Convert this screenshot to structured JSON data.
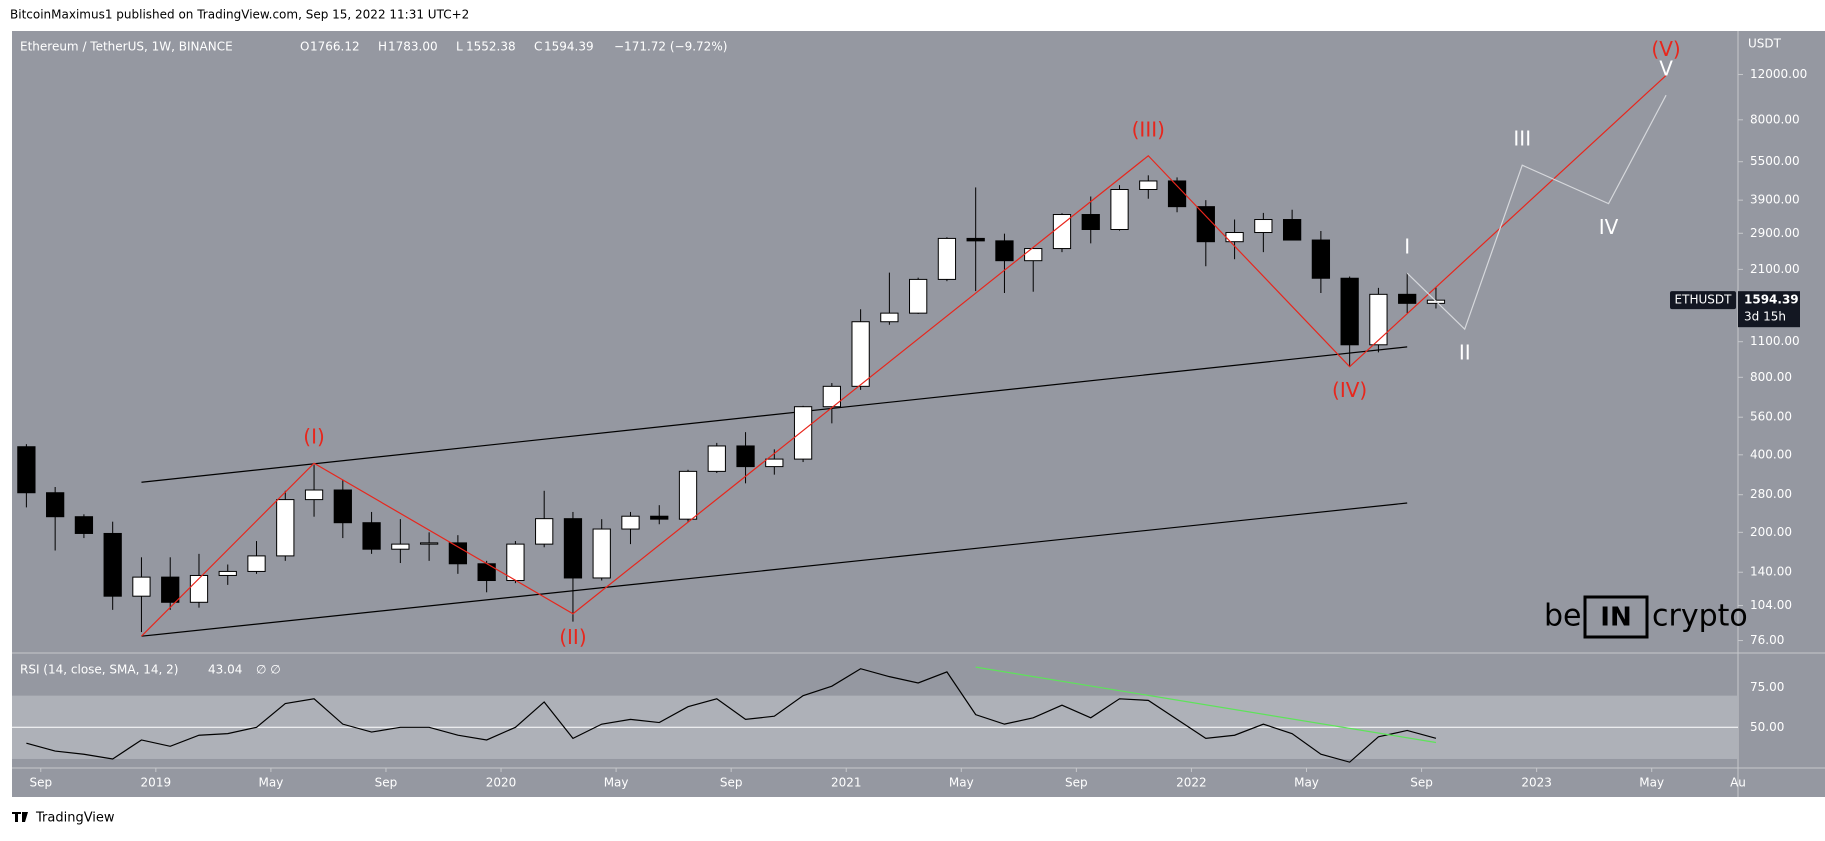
{
  "header": {
    "publisher": "BitcoinMaximus1 published on TradingView.com, Sep 15, 2022 11:31 UTC+2",
    "ohlc": [
      {
        "label": "O",
        "value": "1766.12"
      },
      {
        "label": "H",
        "value": "1783.00"
      },
      {
        "label": "L",
        "value": "1552.38"
      }
    ],
    "close_label": "C",
    "change": "−171.72 (−9.72%)"
  },
  "footer": "TradingView",
  "watermark": {
    "left": "be",
    "box": "IN",
    "right": "crypto"
  },
  "chart_data": {
    "type": "candlestick",
    "title": "Ethereum / TetherUS, 1W, BINANCE",
    "log_scale": true,
    "axis_unit": "USDT",
    "symbol": "ETHUSDT",
    "countdown": "3d 15h",
    "up_color": "#ffffff",
    "down_color": "#000000",
    "x": [
      "2018-08",
      "2018-09",
      "2018-10",
      "2018-11",
      "2018-12",
      "2019-01",
      "2019-02",
      "2019-03",
      "2019-04",
      "2019-05",
      "2019-06",
      "2019-07",
      "2019-08",
      "2019-09",
      "2019-10",
      "2019-11",
      "2019-12",
      "2020-01",
      "2020-02",
      "2020-03",
      "2020-04",
      "2020-05",
      "2020-06",
      "2020-07",
      "2020-08",
      "2020-09",
      "2020-10",
      "2020-11",
      "2020-12",
      "2021-01",
      "2021-02",
      "2021-03",
      "2021-04",
      "2021-05",
      "2021-06",
      "2021-07",
      "2021-08",
      "2021-09",
      "2021-10",
      "2021-11",
      "2021-12",
      "2022-01",
      "2022-02",
      "2022-03",
      "2022-04",
      "2022-05",
      "2022-06",
      "2022-07",
      "2022-08",
      "2022-09"
    ],
    "open": [
      430,
      285,
      230,
      198,
      113,
      134,
      107,
      136,
      141,
      162,
      268,
      292,
      218,
      172,
      180,
      182,
      151,
      130,
      180,
      226,
      133,
      206,
      231,
      225,
      345,
      433,
      360,
      385,
      615,
      738,
      1315,
      1420,
      1920,
      2770,
      2710,
      2270,
      2530,
      3430,
      3000,
      4290,
      4630,
      3680,
      2690,
      2920,
      3280,
      2730,
      1940,
      1070,
      1680,
      1550
    ],
    "high": [
      440,
      300,
      235,
      220,
      160,
      160,
      165,
      150,
      185,
      290,
      365,
      320,
      240,
      225,
      200,
      195,
      155,
      185,
      290,
      240,
      225,
      240,
      255,
      350,
      445,
      490,
      420,
      620,
      760,
      1470,
      2040,
      1950,
      2800,
      4370,
      2890,
      2550,
      3470,
      4030,
      4460,
      4870,
      4780,
      3900,
      3280,
      3480,
      3580,
      2960,
      1970,
      1780,
      2030,
      1790
    ],
    "low": [
      250,
      170,
      190,
      100,
      82,
      100,
      102,
      125,
      138,
      155,
      230,
      190,
      165,
      152,
      155,
      138,
      117,
      127,
      175,
      90,
      130,
      180,
      215,
      220,
      340,
      310,
      335,
      375,
      530,
      715,
      1280,
      1410,
      1890,
      1730,
      1700,
      1720,
      2450,
      2650,
      2970,
      3950,
      3500,
      2160,
      2300,
      2450,
      2780,
      1700,
      880,
      1000,
      1420,
      1480
    ],
    "close": [
      285,
      230,
      198,
      113,
      134,
      107,
      136,
      141,
      162,
      268,
      292,
      218,
      172,
      180,
      182,
      151,
      130,
      180,
      226,
      133,
      206,
      231,
      225,
      345,
      433,
      360,
      385,
      615,
      738,
      1315,
      1420,
      1920,
      2770,
      2710,
      2270,
      2530,
      3430,
      3000,
      4290,
      4630,
      3680,
      2690,
      2920,
      3280,
      2730,
      1940,
      1070,
      1680,
      1550,
      1594.39
    ],
    "xlim": [
      "2018-08",
      "2023-08"
    ],
    "xticks": [
      {
        "value": "2018-09",
        "label": "Sep"
      },
      {
        "value": "2019-01",
        "label": "2019"
      },
      {
        "value": "2019-05",
        "label": "May"
      },
      {
        "value": "2019-09",
        "label": "Sep"
      },
      {
        "value": "2020-01",
        "label": "2020"
      },
      {
        "value": "2020-05",
        "label": "May"
      },
      {
        "value": "2020-09",
        "label": "Sep"
      },
      {
        "value": "2021-01",
        "label": "2021"
      },
      {
        "value": "2021-05",
        "label": "May"
      },
      {
        "value": "2021-09",
        "label": "Sep"
      },
      {
        "value": "2022-01",
        "label": "2022"
      },
      {
        "value": "2022-05",
        "label": "May"
      },
      {
        "value": "2022-09",
        "label": "Sep"
      },
      {
        "value": "2023-01",
        "label": "2023"
      },
      {
        "value": "2023-05",
        "label": "May"
      },
      {
        "value": "2023-08",
        "label": "Au"
      }
    ],
    "ylim": [
      68.6,
      17700
    ],
    "yticks": [
      {
        "value": 76,
        "label": "76.00"
      },
      {
        "value": 104,
        "label": "104.00"
      },
      {
        "value": 140,
        "label": "140.00"
      },
      {
        "value": 200,
        "label": "200.00"
      },
      {
        "value": 280,
        "label": "280.00"
      },
      {
        "value": 400,
        "label": "400.00"
      },
      {
        "value": 560,
        "label": "560.00"
      },
      {
        "value": 800,
        "label": "800.00"
      },
      {
        "value": 1100,
        "label": "1100.00"
      },
      {
        "value": 2100,
        "label": "2100.00"
      },
      {
        "value": 2900,
        "label": "2900.00"
      },
      {
        "value": 3900,
        "label": "3900.00"
      },
      {
        "value": 5500,
        "label": "5500.00"
      },
      {
        "value": 8000,
        "label": "8000.00"
      },
      {
        "value": 12000,
        "label": "12000.00"
      }
    ],
    "channels": [
      {
        "color": "#000000",
        "x": [
          "2018-12",
          "2022-08"
        ],
        "y": [
          313,
          1050
        ]
      },
      {
        "color": "#000000",
        "x": [
          "2018-12",
          "2022-08"
        ],
        "y": [
          79,
          260
        ]
      }
    ],
    "waves": [
      {
        "color": "#e8261c",
        "line_color": "#e8261c",
        "x": [
          "2018-12",
          "2019-06",
          "2020-03",
          "2021-11",
          "2022-06",
          "2023-05"
        ],
        "y": [
          79,
          371,
          96.6,
          5800,
          880,
          11900
        ],
        "labels": [
          null,
          "(I)",
          "(II)",
          "(III)",
          "(IV)",
          "(V)"
        ],
        "label_pos": [
          null,
          "above",
          "below",
          "above",
          "below",
          "above"
        ]
      },
      {
        "color": "#ffffff",
        "line_color": "#d6d8dc",
        "x": [
          "2022-08",
          "2022-10",
          "2022-12",
          "2023-03",
          "2023-05"
        ],
        "y": [
          2030,
          1230,
          5330,
          3780,
          9970
        ],
        "labels": [
          "I",
          "II",
          "III",
          "IV",
          "V"
        ],
        "label_pos": [
          "above",
          "below",
          "above",
          "below",
          "above"
        ]
      }
    ],
    "rsi": {
      "title": "RSI (14, close, SMA, 14, 2)",
      "extra": "∅ ∅",
      "color": "#000000",
      "values": [
        40,
        35,
        33,
        30,
        42,
        38,
        45,
        46,
        50,
        65,
        68,
        52,
        47,
        50,
        50,
        45,
        42,
        50,
        66,
        43,
        52,
        55,
        53,
        63,
        68,
        55,
        57,
        70,
        76,
        87,
        82,
        78,
        85,
        58,
        52,
        56,
        64,
        56,
        68,
        67,
        55,
        43,
        45,
        52,
        46,
        33,
        28,
        44,
        48,
        43.04
      ],
      "ylim": [
        24.3,
        96.3
      ],
      "band": [
        30,
        70
      ],
      "yticks": [
        {
          "value": 50,
          "label": "50.00"
        },
        {
          "value": 75,
          "label": "75.00"
        }
      ],
      "trendline": {
        "color": "#5ee35a",
        "x": [
          "2021-05",
          "2022-09"
        ],
        "y": [
          88,
          40.4
        ]
      }
    }
  }
}
